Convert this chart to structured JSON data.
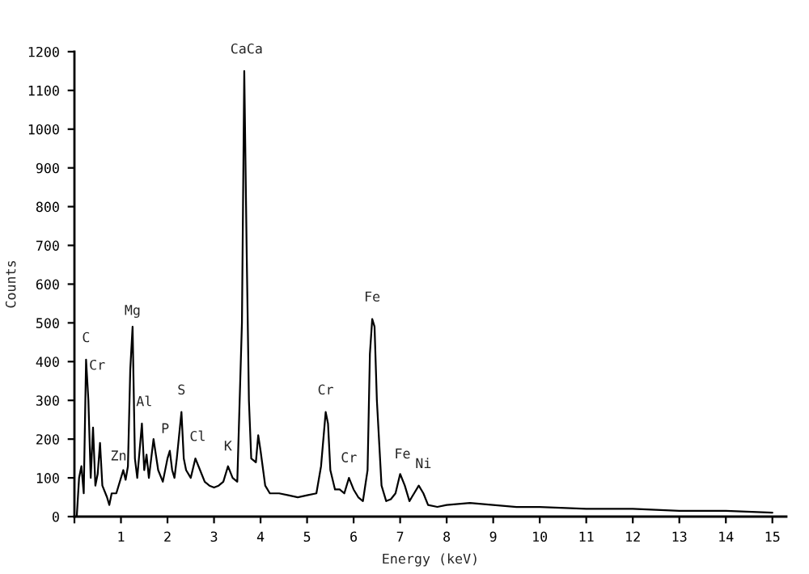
{
  "chart_data": {
    "type": "line",
    "xlabel": "Energy (keV)",
    "ylabel": "Counts",
    "x": [
      0.05,
      0.1,
      0.15,
      0.2,
      0.25,
      0.3,
      0.35,
      0.4,
      0.45,
      0.5,
      0.55,
      0.6,
      0.7,
      0.75,
      0.8,
      0.9,
      1.0,
      1.05,
      1.1,
      1.15,
      1.2,
      1.25,
      1.3,
      1.35,
      1.45,
      1.5,
      1.55,
      1.6,
      1.7,
      1.8,
      1.9,
      2.0,
      2.05,
      2.1,
      2.15,
      2.2,
      2.3,
      2.35,
      2.4,
      2.5,
      2.6,
      2.7,
      2.8,
      2.9,
      3.0,
      3.1,
      3.2,
      3.3,
      3.4,
      3.5,
      3.6,
      3.65,
      3.7,
      3.75,
      3.8,
      3.9,
      3.95,
      4.0,
      4.1,
      4.2,
      4.4,
      4.6,
      4.8,
      5.0,
      5.2,
      5.3,
      5.4,
      5.45,
      5.5,
      5.6,
      5.7,
      5.8,
      5.9,
      6.0,
      6.1,
      6.2,
      6.3,
      6.35,
      6.4,
      6.45,
      6.5,
      6.6,
      6.7,
      6.8,
      6.9,
      7.0,
      7.1,
      7.2,
      7.3,
      7.4,
      7.5,
      7.6,
      7.8,
      8.0,
      8.5,
      9.0,
      9.5,
      10,
      11,
      12,
      13,
      14,
      15
    ],
    "series": [
      {
        "color": "#000000",
        "values": [
          0,
          100,
          130,
          60,
          405,
          300,
          100,
          230,
          80,
          110,
          190,
          80,
          50,
          30,
          60,
          60,
          100,
          120,
          95,
          130,
          380,
          490,
          150,
          100,
          240,
          120,
          160,
          100,
          200,
          120,
          90,
          150,
          170,
          120,
          100,
          150,
          270,
          150,
          120,
          100,
          150,
          120,
          90,
          80,
          75,
          80,
          90,
          130,
          100,
          90,
          500,
          1150,
          700,
          300,
          150,
          140,
          210,
          170,
          80,
          60,
          60,
          55,
          50,
          55,
          60,
          130,
          270,
          240,
          120,
          70,
          70,
          60,
          100,
          70,
          50,
          40,
          120,
          420,
          510,
          490,
          300,
          80,
          40,
          45,
          60,
          110,
          80,
          40,
          60,
          80,
          60,
          30,
          25,
          30,
          35,
          30,
          25,
          25,
          20,
          20,
          15,
          15,
          10
        ]
      }
    ],
    "xlim": [
      0,
      15.3
    ],
    "ylim": [
      0,
      1200
    ],
    "xticks": [
      {
        "value": 0,
        "label": null
      },
      1,
      2,
      3,
      4,
      5,
      6,
      7,
      8,
      9,
      10,
      11,
      12,
      13,
      14,
      15
    ],
    "yticks": [
      0,
      100,
      200,
      300,
      400,
      500,
      600,
      700,
      800,
      900,
      1000,
      1100,
      1200
    ],
    "grid": false,
    "legend": false,
    "annotations": [
      {
        "text": "C",
        "x": 0.25,
        "y": 420
      },
      "Cr",
      {
        "text": "Mg",
        "x": 1.25,
        "y": 490
      },
      "Zn",
      {
        "text": "Al",
        "x": 1.5,
        "y": 255
      },
      {
        "text": "P",
        "x": 1.95,
        "y": 185
      },
      {
        "text": "S",
        "x": 2.3,
        "y": 285
      },
      {
        "text": "Cl",
        "x": 2.65,
        "y": 165
      },
      {
        "text": "K",
        "x": 3.3,
        "y": 140
      },
      {
        "text": "CaCa",
        "x": 3.7,
        "y": 1165
      },
      {
        "text": "Cr",
        "x": 5.4,
        "y": 285
      },
      {
        "text": "Cr",
        "x": 5.9,
        "y": 110
      },
      {
        "text": "Fe",
        "x": 6.4,
        "y": 525
      },
      {
        "text": "Fe",
        "x": 7.05,
        "y": 120
      },
      {
        "text": "Ni",
        "x": 7.5,
        "y": 95
      }
    ]
  }
}
